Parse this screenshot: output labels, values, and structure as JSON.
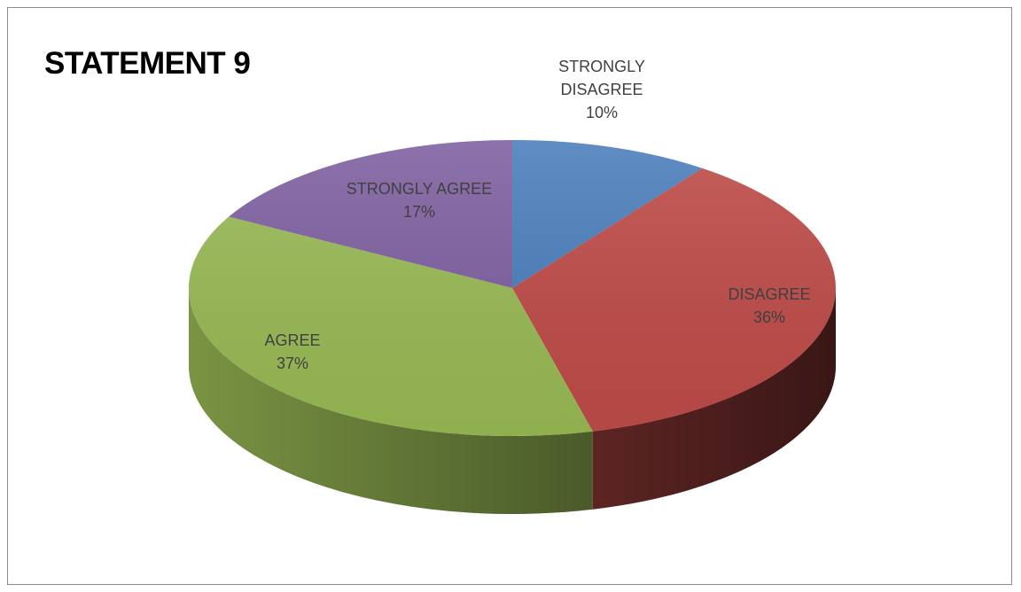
{
  "chart_data": {
    "type": "pie3d",
    "title": "STATEMENT 9",
    "categories": [
      "STRONGLY DISAGREE",
      "DISAGREE",
      "AGREE",
      "STRONGLY AGREE"
    ],
    "values": [
      10,
      36,
      37,
      17
    ],
    "value_labels": [
      "10%",
      "36%",
      "37%",
      "17%"
    ],
    "colors": [
      "#4a7ebb",
      "#be4b48",
      "#98b954",
      "#7d5fa0"
    ]
  }
}
